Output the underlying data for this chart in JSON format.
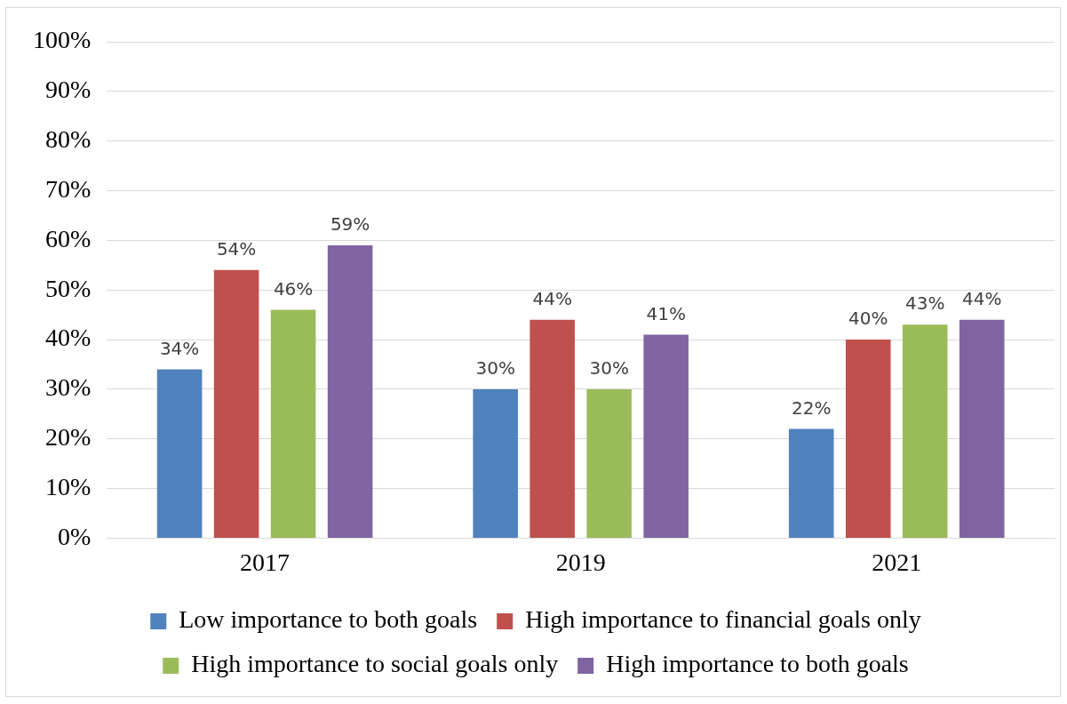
{
  "chart_data": {
    "type": "bar",
    "categories": [
      "2017",
      "2019",
      "2021"
    ],
    "series": [
      {
        "name": "Low importance to both goals",
        "color": "#4f81bd",
        "values": [
          34,
          30,
          22
        ],
        "value_labels": [
          "34%",
          "30%",
          "22%"
        ]
      },
      {
        "name": "High importance to financial goals only",
        "color": "#c0504d",
        "values": [
          54,
          44,
          40
        ],
        "value_labels": [
          "54%",
          "44%",
          "40%"
        ]
      },
      {
        "name": "High importance to social goals only",
        "color": "#9bbb59",
        "values": [
          46,
          30,
          43
        ],
        "value_labels": [
          "46%",
          "30%",
          "43%"
        ]
      },
      {
        "name": "High importance to both goals",
        "color": "#8064a2",
        "values": [
          59,
          41,
          44
        ],
        "value_labels": [
          "59%",
          "41%",
          "44%"
        ]
      }
    ],
    "ylim": [
      0,
      100
    ],
    "yticks": [
      {
        "value": 0,
        "label": "0%"
      },
      {
        "value": 10,
        "label": "10%"
      },
      {
        "value": 20,
        "label": "20%"
      },
      {
        "value": 30,
        "label": "30%"
      },
      {
        "value": 40,
        "label": "40%"
      },
      {
        "value": 50,
        "label": "50%"
      },
      {
        "value": 60,
        "label": "60%"
      },
      {
        "value": 70,
        "label": "70%"
      },
      {
        "value": 80,
        "label": "80%"
      },
      {
        "value": 90,
        "label": "90%"
      },
      {
        "value": 100,
        "label": "100%"
      }
    ],
    "grid": "y",
    "legend": "bottom"
  }
}
